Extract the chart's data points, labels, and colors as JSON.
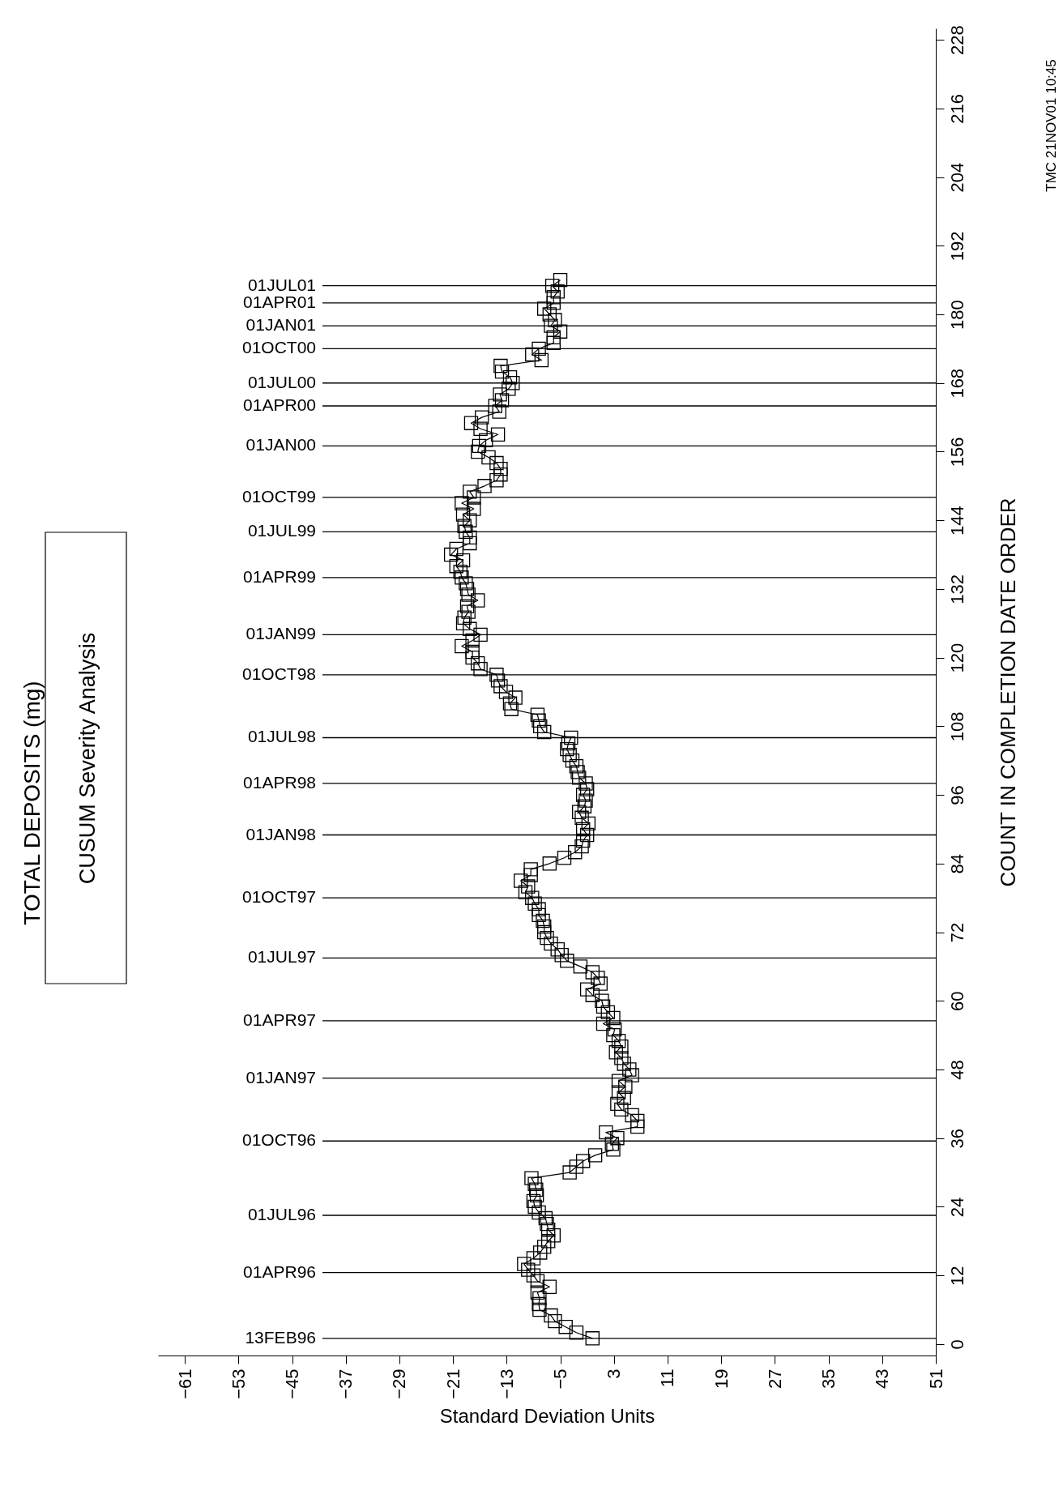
{
  "chart_data": {
    "type": "line",
    "title": "TOTAL DEPOSITS (mg)",
    "subtitle": "CUSUM Severity Analysis",
    "xlabel": "Standard Deviation Units",
    "ylabel": "COUNT IN COMPLETION DATE ORDER",
    "annotations": [
      "TMC 21NOV01 10:45"
    ],
    "xlim": [
      -65,
      51
    ],
    "xticks": [
      -61,
      -53,
      -45,
      -37,
      -29,
      -21,
      -13,
      -5,
      3,
      11,
      19,
      27,
      35,
      43,
      51
    ],
    "ylim": [
      -2,
      230
    ],
    "yticks": [
      0,
      12,
      24,
      36,
      48,
      60,
      72,
      84,
      96,
      108,
      120,
      132,
      144,
      156,
      168,
      180,
      192,
      204,
      216,
      228
    ],
    "grid": false,
    "marker": "square",
    "line_style": "solid",
    "series": [
      {
        "color": "#000000",
        "x": [
          -0.2,
          -2.6,
          -4.2,
          -5.8,
          -6.4,
          -8.1,
          -8.2,
          -8.1,
          -8.4,
          -6.6,
          -8.4,
          -9.0,
          -9.8,
          -10.4,
          -9.0,
          -8.0,
          -7.4,
          -6.8,
          -6.0,
          -6.8,
          -7.0,
          -7.2,
          -8.2,
          -8.8,
          -9.0,
          -8.5,
          -8.6,
          -8.8,
          -9.3,
          -3.6,
          -2.6,
          -1.6,
          0.2,
          2.9,
          2.7,
          3.5,
          1.8,
          6.5,
          6.5,
          5.7,
          4.1,
          3.5,
          4.5,
          3.7,
          4.7,
          3.7,
          5.7,
          5.3,
          4.5,
          4.1,
          3.3,
          4.1,
          3.7,
          2.9,
          3.1,
          1.4,
          2.9,
          2.1,
          1.4,
          1.2,
          -0.2,
          -1.0,
          1.0,
          0.6,
          -0.2,
          -2.0,
          -4.0,
          -4.8,
          -5.4,
          -6.4,
          -7.0,
          -7.4,
          -7.4,
          -7.6,
          -8.2,
          -8.2,
          -8.8,
          -9.2,
          -10.2,
          -9.8,
          -10.9,
          -9.4,
          -9.4,
          -6.6,
          -4.4,
          -2.8,
          -1.8,
          -1.6,
          -1.0,
          -1.6,
          -0.8,
          -1.8,
          -2.2,
          -1.4,
          -1.2,
          -1.6,
          -1.0,
          -1.2,
          -2.2,
          -2.4,
          -2.6,
          -3.2,
          -3.6,
          -4.0,
          -3.8,
          -3.4,
          -7.4,
          -8.0,
          -8.2,
          -8.4,
          -12.3,
          -12.5,
          -11.7,
          -13.1,
          -13.9,
          -14.3,
          -14.5,
          -16.9,
          -17.3,
          -18.1,
          -18.1,
          -19.7,
          -18.1,
          -16.9,
          -18.5,
          -19.5,
          -19.3,
          -18.7,
          -18.9,
          -17.3,
          -18.7,
          -18.9,
          -19.1,
          -19.7,
          -19.9,
          -20.5,
          -19.5,
          -21.3,
          -20.5,
          -18.5,
          -18.5,
          -19.1,
          -19.3,
          -18.5,
          -19.5,
          -17.9,
          -19.7,
          -17.9,
          -18.5,
          -16.3,
          -14.5,
          -13.9,
          -13.9,
          -14.5,
          -15.7,
          -17.3,
          -17.1,
          -16.1,
          -14.3,
          -16.9,
          -18.3,
          -16.7,
          -14.1,
          -14.7,
          -13.7,
          -14.0,
          -12.7,
          -12.1,
          -12.5,
          -13.7,
          -13.9,
          -7.8,
          -9.2,
          -8.2,
          -6.0,
          -6.0,
          -5.0,
          -6.4,
          -5.8,
          -6.6,
          -7.4,
          -6.0,
          -6.0,
          -5.4,
          -6.2,
          -5.0
        ],
        "values": [
          1,
          2,
          3,
          4,
          5,
          6,
          7,
          8,
          9,
          10,
          11,
          12,
          13,
          14,
          15,
          16,
          17,
          18,
          19,
          20,
          21,
          22,
          23,
          24,
          25,
          26,
          27,
          28,
          29,
          30,
          31,
          32,
          33,
          34,
          35,
          36,
          37,
          38,
          39,
          40,
          41,
          42,
          43,
          44,
          45,
          46,
          47,
          48,
          49,
          50,
          51,
          52,
          53,
          54,
          55,
          56,
          57,
          58,
          59,
          60,
          61,
          62,
          63,
          64,
          65,
          66,
          67,
          68,
          69,
          70,
          71,
          72,
          73,
          74,
          75,
          76,
          77,
          78,
          79,
          80,
          81,
          82,
          83,
          84,
          85,
          86,
          87,
          88,
          89,
          90,
          91,
          92,
          93,
          94,
          95,
          96,
          97,
          98,
          99,
          100,
          101,
          102,
          103,
          104,
          105,
          106,
          107,
          108,
          109,
          110,
          111,
          112,
          113,
          114,
          115,
          116,
          117,
          118,
          119,
          120,
          121,
          122,
          123,
          124,
          125,
          126,
          127,
          128,
          129,
          130,
          131,
          132,
          133,
          134,
          135,
          136,
          137,
          138,
          139,
          140,
          141,
          142,
          143,
          144,
          145,
          146,
          147,
          148,
          149,
          150,
          151,
          152,
          153,
          154,
          155,
          156,
          157,
          158,
          159,
          160,
          161,
          162,
          163,
          164,
          165,
          166,
          167,
          168,
          169,
          170,
          171,
          172,
          173,
          174,
          175,
          176,
          177,
          178,
          179,
          180,
          181,
          182,
          183,
          184,
          185,
          186
        ]
      }
    ],
    "ref_lines": [
      {
        "axis": "y",
        "value": 1,
        "label": "13FEB96"
      },
      {
        "axis": "y",
        "value": 12.5,
        "label": "01APR96"
      },
      {
        "axis": "y",
        "value": 22.5,
        "label": "01JUL96"
      },
      {
        "axis": "y",
        "value": 35.5,
        "label": "01OCT96"
      },
      {
        "axis": "y",
        "value": 46.5,
        "label": "01JAN97"
      },
      {
        "axis": "y",
        "value": 56.5,
        "label": "01APR97"
      },
      {
        "axis": "y",
        "value": 67.5,
        "label": "01JUL97"
      },
      {
        "axis": "y",
        "value": 78,
        "label": "01OCT97"
      },
      {
        "axis": "y",
        "value": 89,
        "label": "01JAN98"
      },
      {
        "axis": "y",
        "value": 98,
        "label": "01APR98"
      },
      {
        "axis": "y",
        "value": 106,
        "label": "01JUL98"
      },
      {
        "axis": "y",
        "value": 117,
        "label": "01OCT98"
      },
      {
        "axis": "y",
        "value": 124,
        "label": "01JAN99"
      },
      {
        "axis": "y",
        "value": 134,
        "label": "01APR99"
      },
      {
        "axis": "y",
        "value": 142,
        "label": "01JUL99"
      },
      {
        "axis": "y",
        "value": 148,
        "label": "01OCT99"
      },
      {
        "axis": "y",
        "value": 157,
        "label": "01JAN00"
      },
      {
        "axis": "y",
        "value": 164,
        "label": "01APR00"
      },
      {
        "axis": "y",
        "value": 168,
        "label": "01JUL00"
      },
      {
        "axis": "y",
        "value": 174,
        "label": "01OCT00"
      },
      {
        "axis": "y",
        "value": 178,
        "label": "01JAN01"
      },
      {
        "axis": "y",
        "value": 182,
        "label": "01APR01"
      },
      {
        "axis": "y",
        "value": 185,
        "label": "01JUL01"
      }
    ]
  }
}
